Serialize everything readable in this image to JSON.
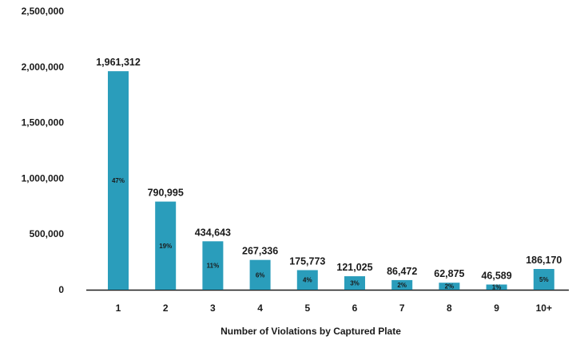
{
  "chart_data": {
    "type": "bar",
    "categories": [
      "1",
      "2",
      "3",
      "4",
      "5",
      "6",
      "7",
      "8",
      "9",
      "10+"
    ],
    "values": [
      1961312,
      790995,
      434643,
      267336,
      175773,
      121025,
      86472,
      62875,
      46589,
      186170
    ],
    "value_labels": [
      "1,961,312",
      "790,995",
      "434,643",
      "267,336",
      "175,773",
      "121,025",
      "86,472",
      "62,875",
      "46,589",
      "186,170"
    ],
    "percent_labels": [
      "47%",
      "19%",
      "11%",
      "6%",
      "4%",
      "3%",
      "2%",
      "2%",
      "1%",
      "5%"
    ],
    "title": "",
    "xlabel": "Number of Violations by Captured Plate",
    "ylabel": "",
    "ylim": [
      0,
      2500000
    ],
    "yticks": [
      0,
      500000,
      1000000,
      1500000,
      2000000,
      2500000
    ],
    "ytick_labels": [
      "0",
      "500,000",
      "1,000,000",
      "1,500,000",
      "2,000,000",
      "2,500,000"
    ],
    "grid": false,
    "legend": "none",
    "bar_color": "#2a9dbb",
    "axis_color": "#1a1a1a"
  }
}
